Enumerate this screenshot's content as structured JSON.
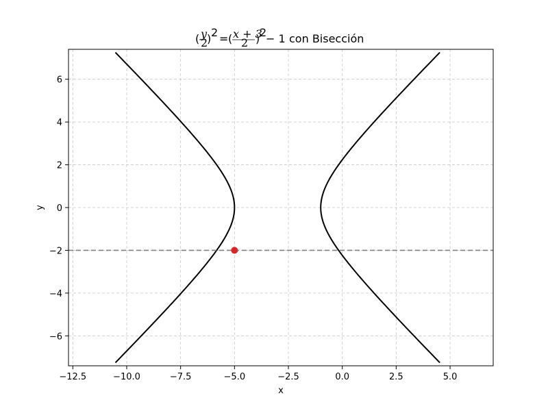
{
  "chart_data": {
    "type": "line",
    "title": {
      "lhs_num": "y",
      "lhs_den": "2",
      "rhs_num": "x + 3",
      "rhs_den": "2",
      "exp": "2",
      "minus": "− 1",
      "suffix": "con Bisección"
    },
    "xlabel": "x",
    "ylabel": "y",
    "xlim": [
      -12.7,
      7.0
    ],
    "ylim": [
      -7.4,
      7.4
    ],
    "xticks": [
      -12.5,
      -10.0,
      -7.5,
      -5.0,
      -2.5,
      0.0,
      2.5,
      5.0
    ],
    "xtick_labels": [
      "−12.5",
      "−10.0",
      "−7.5",
      "−5.0",
      "−2.5",
      "0.0",
      "2.5",
      "5.0"
    ],
    "yticks": [
      -6,
      -4,
      -2,
      0,
      2,
      4,
      6
    ],
    "ytick_labels": [
      "−6",
      "−4",
      "−2",
      "0",
      "2",
      "4",
      "6"
    ],
    "grid": true,
    "hyperbola": {
      "h": -3,
      "a": 2,
      "b": 2,
      "t_max": 2.0,
      "color": "#000000"
    },
    "hline": {
      "y": -2,
      "color": "#808080",
      "style": "dashed"
    },
    "point": {
      "x": -5.0,
      "y": -2,
      "color": "#d62728"
    }
  }
}
